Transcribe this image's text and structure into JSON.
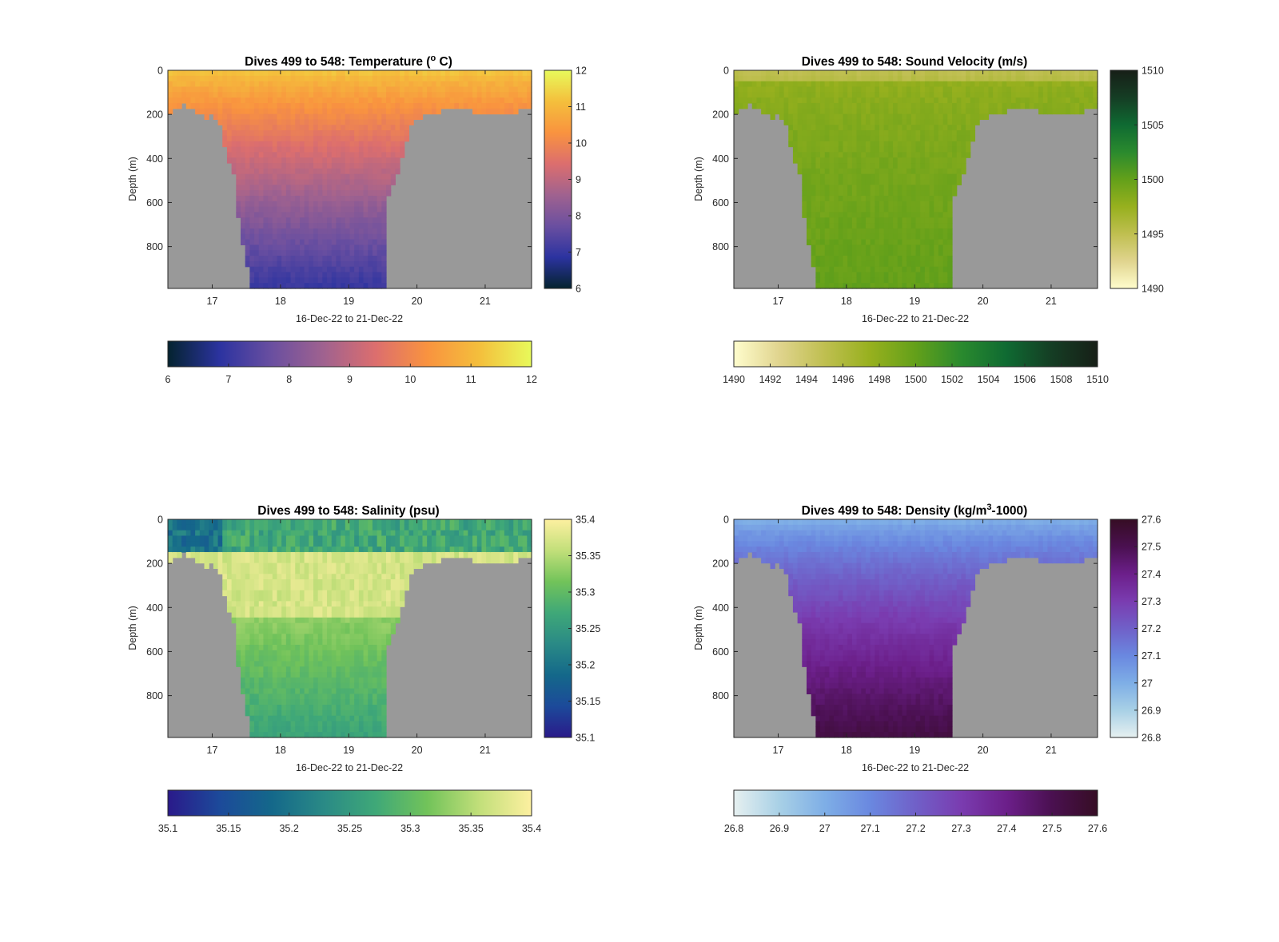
{
  "figure": {
    "background": "#ffffff",
    "missing_color": "#999999",
    "xlabel": "16-Dec-22 to 21-Dec-22",
    "ylabel": "Depth (m)"
  },
  "chart_data": [
    {
      "type": "heatmap",
      "key": "temperature",
      "title": "Dives 499 to 548: Temperature (° C)",
      "title_main": "Dives 499 to 548: Temperature (",
      "title_sup": "o",
      "title_tail": " C)",
      "xlabel": "16-Dec-22 to 21-Dec-22",
      "ylabel": "Depth (m)",
      "xlim": [
        16.35,
        21.68
      ],
      "ylim": [
        0,
        990
      ],
      "y_reversed": true,
      "xticks": [
        "17",
        "18",
        "19",
        "20",
        "21"
      ],
      "yticks": [
        "0",
        "200",
        "400",
        "600",
        "800"
      ],
      "clim": [
        6,
        12
      ],
      "colormap": "thermal",
      "colormap_stops": [
        "#04232f",
        "#2c33a0",
        "#6a4fa0",
        "#a0628f",
        "#dc6e6e",
        "#f9933f",
        "#f4bf3c",
        "#e8fa5b"
      ],
      "colorbar_right_ticks": [
        "12",
        "11",
        "10",
        "9",
        "8",
        "7",
        "6"
      ],
      "colorbar_bottom_ticks": [
        "6",
        "7",
        "8",
        "9",
        "10",
        "11",
        "12"
      ],
      "surface_value": 11.2,
      "deep_value": 7.0,
      "profile_shape": "temperature"
    },
    {
      "type": "heatmap",
      "key": "sound_velocity",
      "title": "Dives 499 to 548: Sound Velocity (m/s)",
      "title_main": "Dives 499 to 548: Sound Velocity (m/s)",
      "title_sup": "",
      "title_tail": "",
      "xlabel": "16-Dec-22 to 21-Dec-22",
      "ylabel": "Depth (m)",
      "xlim": [
        16.35,
        21.68
      ],
      "ylim": [
        0,
        990
      ],
      "y_reversed": true,
      "xticks": [
        "17",
        "18",
        "19",
        "20",
        "21"
      ],
      "yticks": [
        "0",
        "200",
        "400",
        "600",
        "800"
      ],
      "clim": [
        1490,
        1510
      ],
      "colormap": "speed",
      "colormap_stops": [
        "#fffdcd",
        "#e0d48e",
        "#bfbf50",
        "#97b01e",
        "#63a01a",
        "#2a8a2e",
        "#0f6a32",
        "#153d24",
        "#171f17"
      ],
      "colorbar_right_ticks": [
        "1510",
        "1505",
        "1500",
        "1495",
        "1490"
      ],
      "colorbar_bottom_ticks": [
        "1490",
        "1492",
        "1494",
        "1496",
        "1498",
        "1500",
        "1502",
        "1504",
        "1506",
        "1508",
        "1510"
      ],
      "surface_value": 1496.5,
      "deep_value": 1499.5,
      "profile_shape": "sound"
    },
    {
      "type": "heatmap",
      "key": "salinity",
      "title": "Dives 499 to 548: Salinity (psu)",
      "title_main": "Dives 499 to 548: Salinity (psu)",
      "title_sup": "",
      "title_tail": "",
      "xlabel": "16-Dec-22 to 21-Dec-22",
      "ylabel": "Depth (m)",
      "xlim": [
        16.35,
        21.68
      ],
      "ylim": [
        0,
        990
      ],
      "y_reversed": true,
      "xticks": [
        "17",
        "18",
        "19",
        "20",
        "21"
      ],
      "yticks": [
        "0",
        "200",
        "400",
        "600",
        "800"
      ],
      "clim": [
        35.1,
        35.4
      ],
      "colormap": "haline",
      "colormap_stops": [
        "#2a1a8a",
        "#1c4a9a",
        "#14688a",
        "#2a8a86",
        "#3fa878",
        "#72c35a",
        "#c2df7a",
        "#fdf0a0"
      ],
      "colorbar_right_ticks": [
        "35.4",
        "35.35",
        "35.3",
        "35.25",
        "35.2",
        "35.15",
        "35.1"
      ],
      "colorbar_bottom_ticks": [
        "35.1",
        "35.15",
        "35.2",
        "35.25",
        "35.3",
        "35.35",
        "35.4"
      ],
      "surface_value": 35.3,
      "deep_value": 35.27,
      "profile_shape": "salinity"
    },
    {
      "type": "heatmap",
      "key": "density",
      "title": "Dives 499 to 548: Density (kg/m³-1000)",
      "title_main": "Dives 499 to 548: Density (kg/m",
      "title_sup": "3",
      "title_tail": "-1000)",
      "xlabel": "16-Dec-22 to 21-Dec-22",
      "ylabel": "Depth (m)",
      "xlim": [
        16.35,
        21.68
      ],
      "ylim": [
        0,
        990
      ],
      "y_reversed": true,
      "xticks": [
        "17",
        "18",
        "19",
        "20",
        "21"
      ],
      "yticks": [
        "0",
        "200",
        "400",
        "600",
        "800"
      ],
      "clim": [
        26.8,
        27.6
      ],
      "colormap": "dense",
      "colormap_stops": [
        "#e6f0f0",
        "#a8d0e6",
        "#7eaee6",
        "#6a88e0",
        "#7060c8",
        "#7a3cb0",
        "#6c1f8a",
        "#4a1050",
        "#360d24"
      ],
      "colorbar_right_ticks": [
        "27.6",
        "27.5",
        "27.4",
        "27.3",
        "27.2",
        "27.1",
        "27",
        "26.9",
        "26.8"
      ],
      "colorbar_bottom_ticks": [
        "26.8",
        "26.9",
        "27",
        "27.1",
        "27.2",
        "27.3",
        "27.4",
        "27.5",
        "27.6"
      ],
      "surface_value": 27.0,
      "deep_value": 27.45,
      "profile_shape": "density"
    }
  ]
}
